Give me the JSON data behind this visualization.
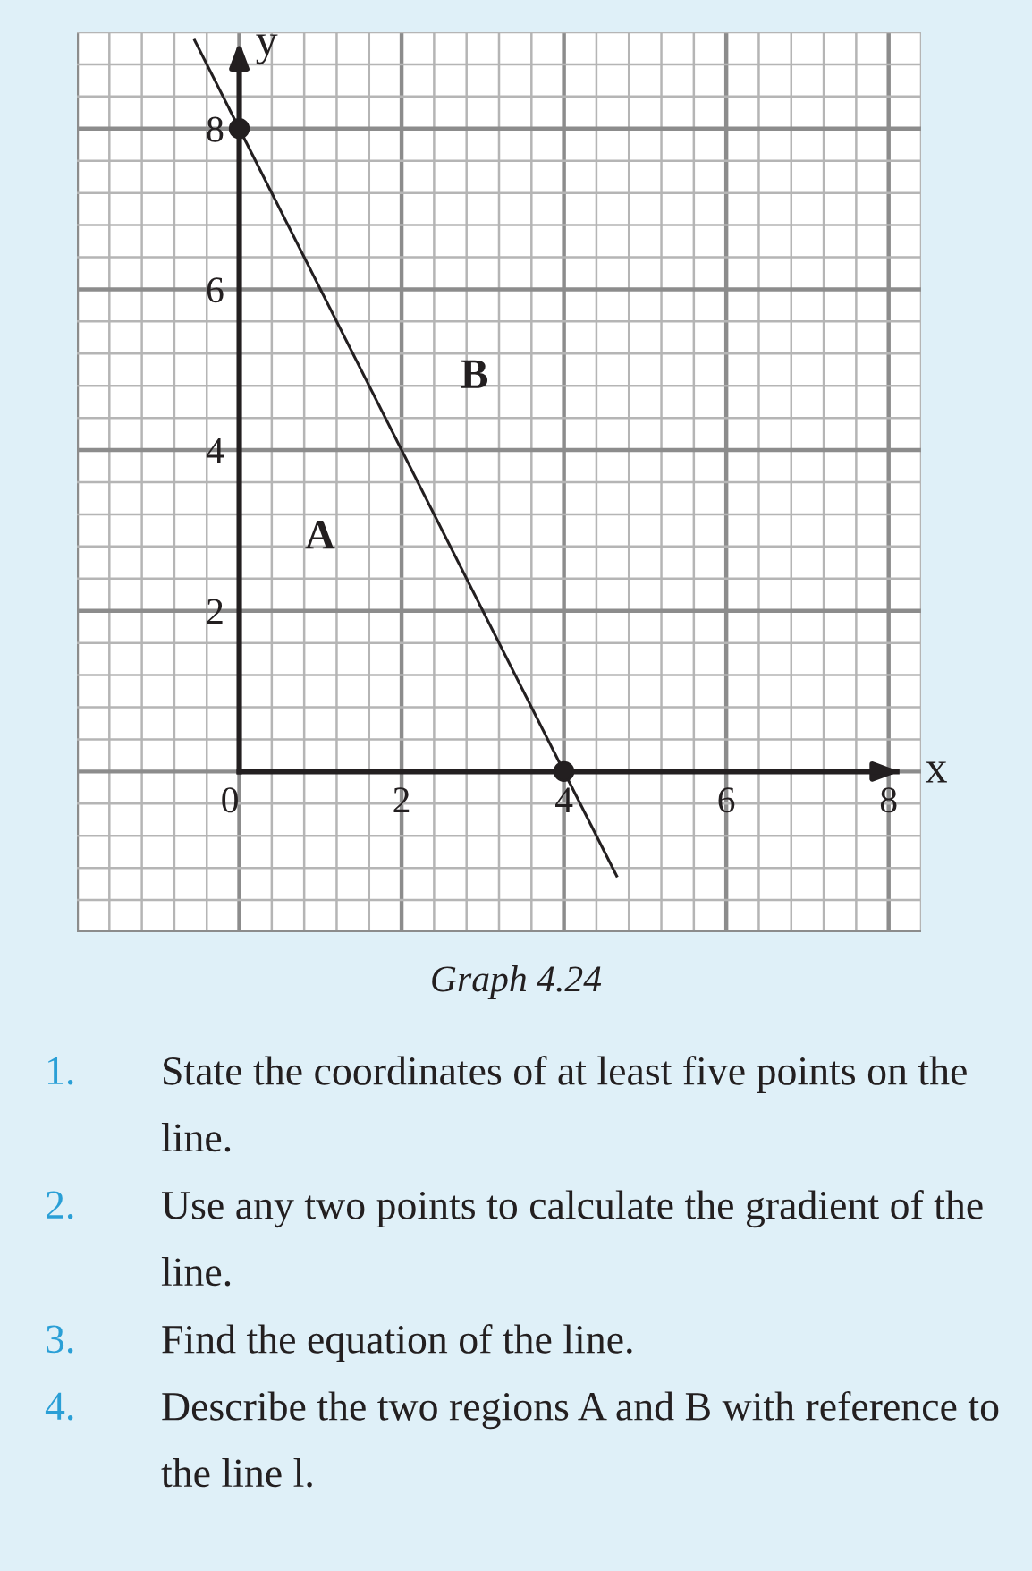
{
  "chart_data": {
    "type": "line",
    "xlabel": "x",
    "ylabel": "y",
    "xlim": [
      -2,
      8.4
    ],
    "ylim": [
      -2,
      9.2
    ],
    "xticks": [
      0,
      2,
      4,
      6,
      8
    ],
    "yticks": [
      2,
      4,
      6,
      8
    ],
    "grid": true,
    "series": [
      {
        "color": "#231f20",
        "x": [
          -0.55,
          4.65
        ],
        "values": [
          9.1,
          -1.3
        ]
      },
      {
        "type": "scatter",
        "color": "#231f20",
        "x": [
          0,
          4
        ],
        "values": [
          8,
          0
        ],
        "marker": "circle"
      }
    ],
    "annotations": [
      "A",
      "B",
      "Graph 4.24",
      "1. State the coordinates of at least five points on the line.",
      "2. Use any two points to calculate the gradient of the line.",
      "3. Find the equation of the line.",
      "4. Describe the two regions A and B with reference to the line l."
    ]
  }
}
